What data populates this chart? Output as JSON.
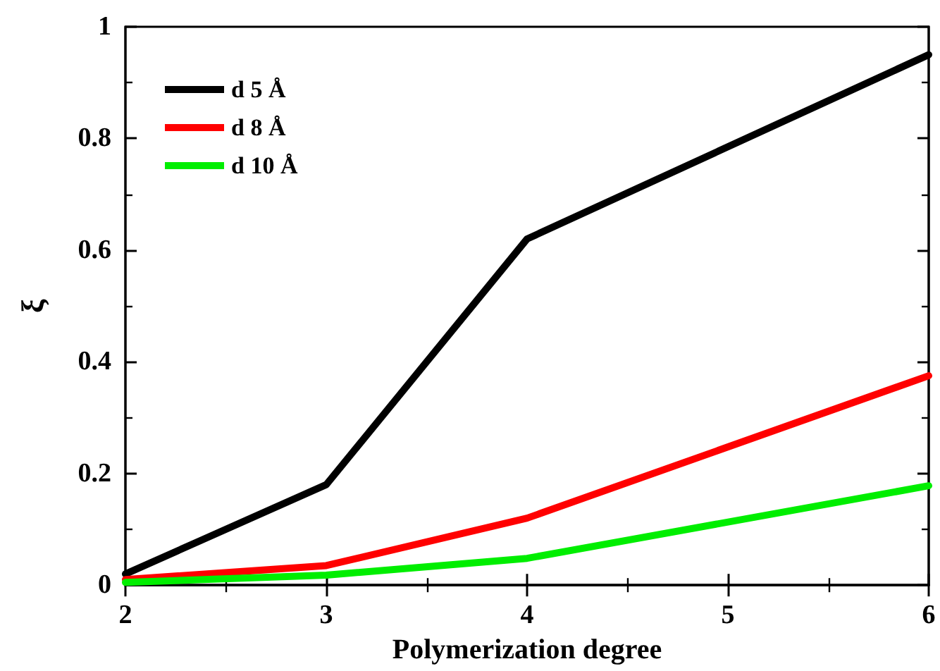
{
  "chart_data": {
    "type": "line",
    "xlabel": "Polymerization degree",
    "ylabel": "ξ",
    "x": [
      2,
      3,
      4,
      6
    ],
    "series": [
      {
        "name": "d 5 Å",
        "color": "#000000",
        "values": [
          0.02,
          0.18,
          0.62,
          0.95
        ]
      },
      {
        "name": "d 8 Å",
        "color": "#ff0000",
        "values": [
          0.01,
          0.035,
          0.12,
          0.375
        ]
      },
      {
        "name": "d 10 Å",
        "color": "#00ee00",
        "values": [
          0.005,
          0.018,
          0.048,
          0.178
        ]
      }
    ],
    "xlim": [
      2,
      6
    ],
    "xticks": [
      2,
      3,
      4,
      5,
      6
    ],
    "ylim": [
      0,
      1
    ],
    "yticks": [
      0,
      0.2,
      0.4,
      0.6,
      0.8,
      1
    ],
    "grid": false,
    "legend": "top left",
    "marker": "none",
    "line_style": "solid"
  }
}
